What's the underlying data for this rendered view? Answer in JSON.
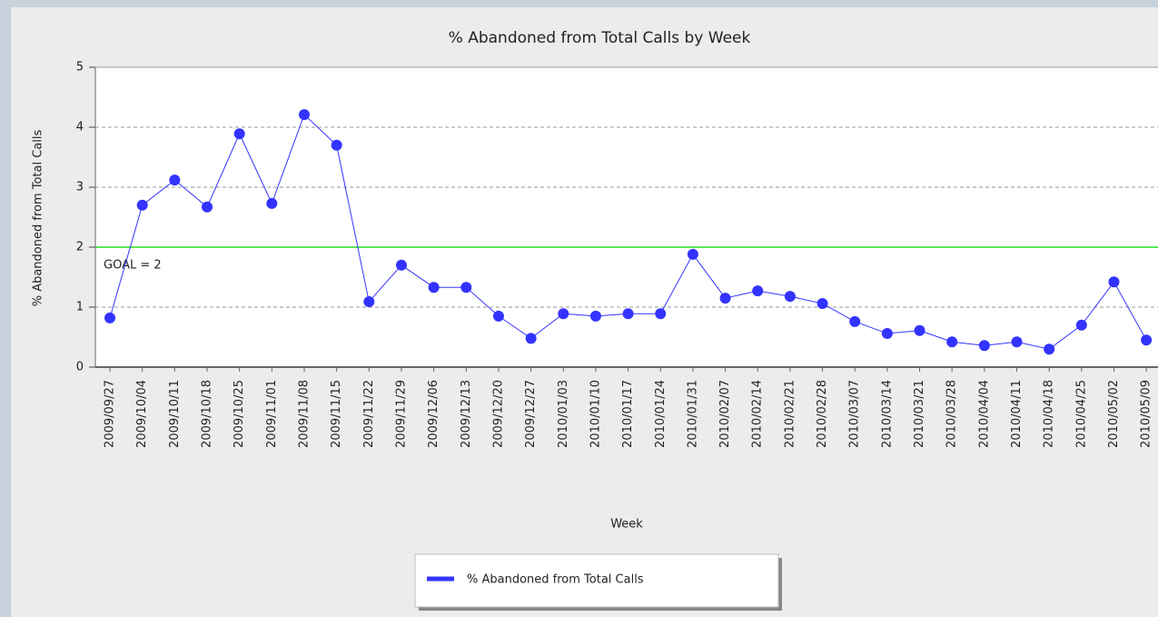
{
  "chart_data": {
    "type": "line",
    "title": "% Abandoned from Total Calls by Week",
    "x_label": "Week",
    "y_label": "% Abandoned from Total Calls",
    "categories": [
      "2009/09/27",
      "2009/10/04",
      "2009/10/11",
      "2009/10/18",
      "2009/10/25",
      "2009/11/01",
      "2009/11/08",
      "2009/11/15",
      "2009/11/22",
      "2009/11/29",
      "2009/12/06",
      "2009/12/13",
      "2009/12/20",
      "2009/12/27",
      "2010/01/03",
      "2010/01/10",
      "2010/01/17",
      "2010/01/24",
      "2010/01/31",
      "2010/02/07",
      "2010/02/14",
      "2010/02/21",
      "2010/02/28",
      "2010/03/07",
      "2010/03/14",
      "2010/03/21",
      "2010/03/28",
      "2010/04/04",
      "2010/04/11",
      "2010/04/18",
      "2010/04/25",
      "2010/05/02",
      "2010/05/09"
    ],
    "series": [
      {
        "name": "% Abandoned from Total Calls",
        "color": "#3333ff",
        "values": [
          0.82,
          2.7,
          3.12,
          2.67,
          3.89,
          2.73,
          4.21,
          3.7,
          1.09,
          1.7,
          1.33,
          1.33,
          0.85,
          0.48,
          0.89,
          0.85,
          0.89,
          0.89,
          1.88,
          1.15,
          1.27,
          1.18,
          1.06,
          0.76,
          0.56,
          0.61,
          0.42,
          0.36,
          0.42,
          0.3,
          0.7,
          1.42,
          0.45
        ]
      }
    ],
    "goal": {
      "value": 2,
      "label": "GOAL = 2",
      "color": "#22dd22"
    },
    "ylim": [
      0,
      5
    ],
    "yticks": [
      0,
      1,
      2,
      3,
      4,
      5
    ],
    "grid": true
  }
}
